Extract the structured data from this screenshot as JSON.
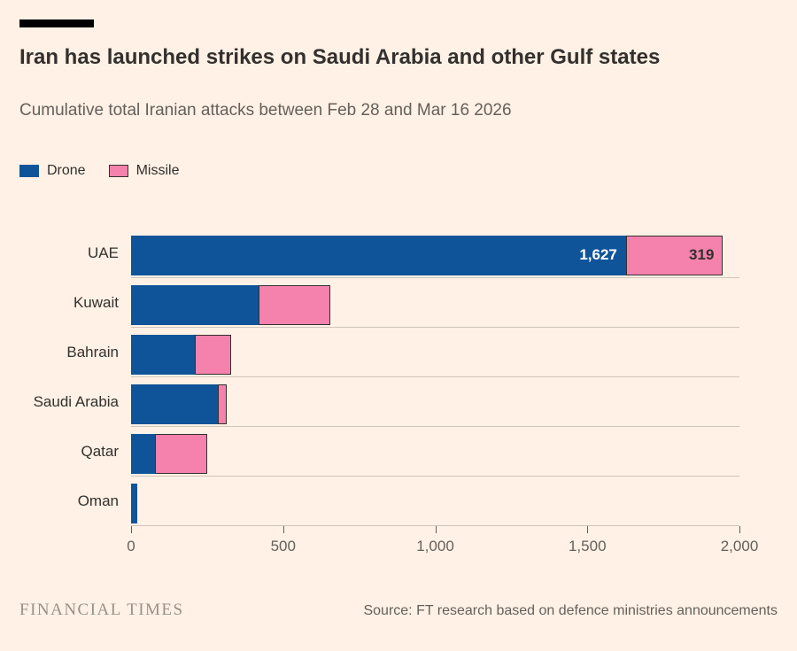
{
  "header": {
    "title": "Iran has launched strikes on Saudi Arabia and other Gulf states",
    "subtitle": "Cumulative total Iranian attacks between Feb 28 and Mar 16 2026"
  },
  "legend": {
    "items": [
      {
        "label": "Drone",
        "color": "#0F5499"
      },
      {
        "label": "Missile",
        "color": "#F582AC",
        "outline": "#33302E"
      }
    ]
  },
  "chart_data": {
    "type": "bar",
    "orientation": "horizontal",
    "stacked": true,
    "title": "Iran has launched strikes on Saudi Arabia and other Gulf states",
    "subtitle": "Cumulative total Iranian attacks between Feb 28 and Mar 16 2026",
    "categories": [
      "UAE",
      "Kuwait",
      "Bahrain",
      "Saudi Arabia",
      "Qatar",
      "Oman"
    ],
    "series": [
      {
        "name": "Drone",
        "color": "#0F5499",
        "values": [
          1627,
          420,
          210,
          285,
          80,
          20
        ]
      },
      {
        "name": "Missile",
        "color": "#F582AC",
        "outline": "#33302E",
        "values": [
          319,
          235,
          120,
          30,
          170,
          0
        ]
      }
    ],
    "xlim": [
      0,
      2000
    ],
    "x_ticks": [
      0,
      500,
      1000,
      1500,
      2000
    ],
    "x_tick_labels": [
      "0",
      "500",
      "1,000",
      "1,500",
      "2,000"
    ],
    "data_labels": [
      {
        "category": "UAE",
        "series": "Drone",
        "text": "1,627",
        "color": "#FFFFFF"
      },
      {
        "category": "UAE",
        "series": "Missile",
        "text": "319",
        "color": "#33302E"
      }
    ],
    "grid": "horizontal line at bottom of each category row",
    "legend_position": "top-left"
  },
  "footer": {
    "brand": "FINANCIAL TIMES",
    "source": "Source: FT research based on defence ministries announcements"
  },
  "colors": {
    "background": "#FFF1E5",
    "title_text": "#33302E",
    "muted_text": "#66605C",
    "gridline": "#CFC5BA",
    "top_rule": "#000000"
  }
}
